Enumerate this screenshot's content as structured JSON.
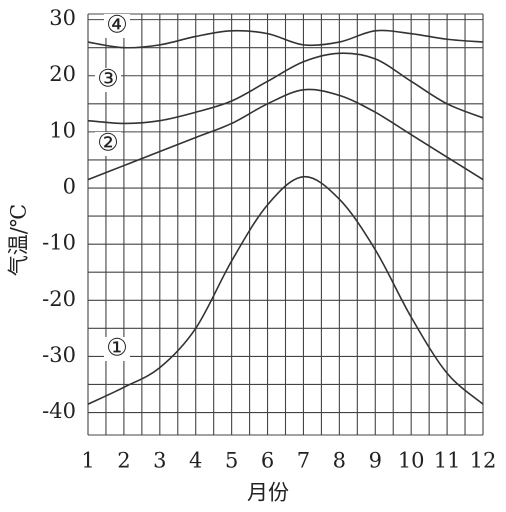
{
  "chart_data": {
    "type": "line",
    "x_label": "月份",
    "y_label": "气温/℃",
    "x": [
      1,
      2,
      3,
      4,
      5,
      6,
      7,
      8,
      9,
      10,
      11,
      12
    ],
    "xlim": [
      1,
      12
    ],
    "xticks": [
      1,
      2,
      3,
      4,
      5,
      6,
      7,
      8,
      9,
      10,
      11,
      12
    ],
    "ylim": [
      -44,
      31
    ],
    "yticks": [
      -40,
      -30,
      -20,
      -10,
      0,
      10,
      20,
      30
    ],
    "grid": true,
    "color": "#333333",
    "series": [
      {
        "name": "①",
        "values": [
          -38.5,
          -35.5,
          -32,
          -25,
          -13,
          -3,
          2,
          -2,
          -11,
          -23,
          -33,
          -38.5
        ]
      },
      {
        "name": "②",
        "values": [
          1.5,
          4,
          6.5,
          9,
          11.5,
          15,
          17.5,
          16.5,
          13.5,
          9.5,
          5.5,
          1.5
        ]
      },
      {
        "name": "③",
        "values": [
          12,
          11.5,
          12,
          13.5,
          15.5,
          19,
          22.5,
          24,
          23,
          19,
          15,
          12.5
        ]
      },
      {
        "name": "④",
        "values": [
          26,
          25,
          25.5,
          27,
          28,
          27.5,
          25.5,
          26,
          28,
          27.5,
          26.5,
          26
        ]
      }
    ]
  }
}
